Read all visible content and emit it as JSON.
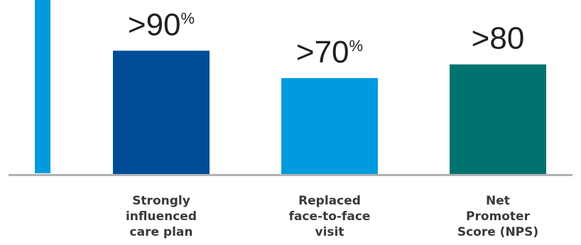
{
  "chart_data": {
    "type": "bar",
    "categories": [
      [
        "Strongly",
        "influenced",
        "care plan"
      ],
      [
        "Replaced",
        "face-to-face",
        "visit"
      ],
      [
        "Net",
        "Promoter",
        "Score (NPS)"
      ]
    ],
    "values": [
      90,
      70,
      80
    ],
    "data_labels": [
      {
        "prefix": ">",
        "number": "90",
        "suffix": "%"
      },
      {
        "prefix": ">",
        "number": "70",
        "suffix": "%"
      },
      {
        "prefix": ">",
        "number": "80",
        "suffix": ""
      }
    ],
    "colors": [
      "#004C97",
      "#009BDF",
      "#00736F"
    ],
    "accent_bar_color": "#009BDF",
    "baseline_color": "#B2B2B2",
    "ylim": [
      0,
      127
    ]
  }
}
